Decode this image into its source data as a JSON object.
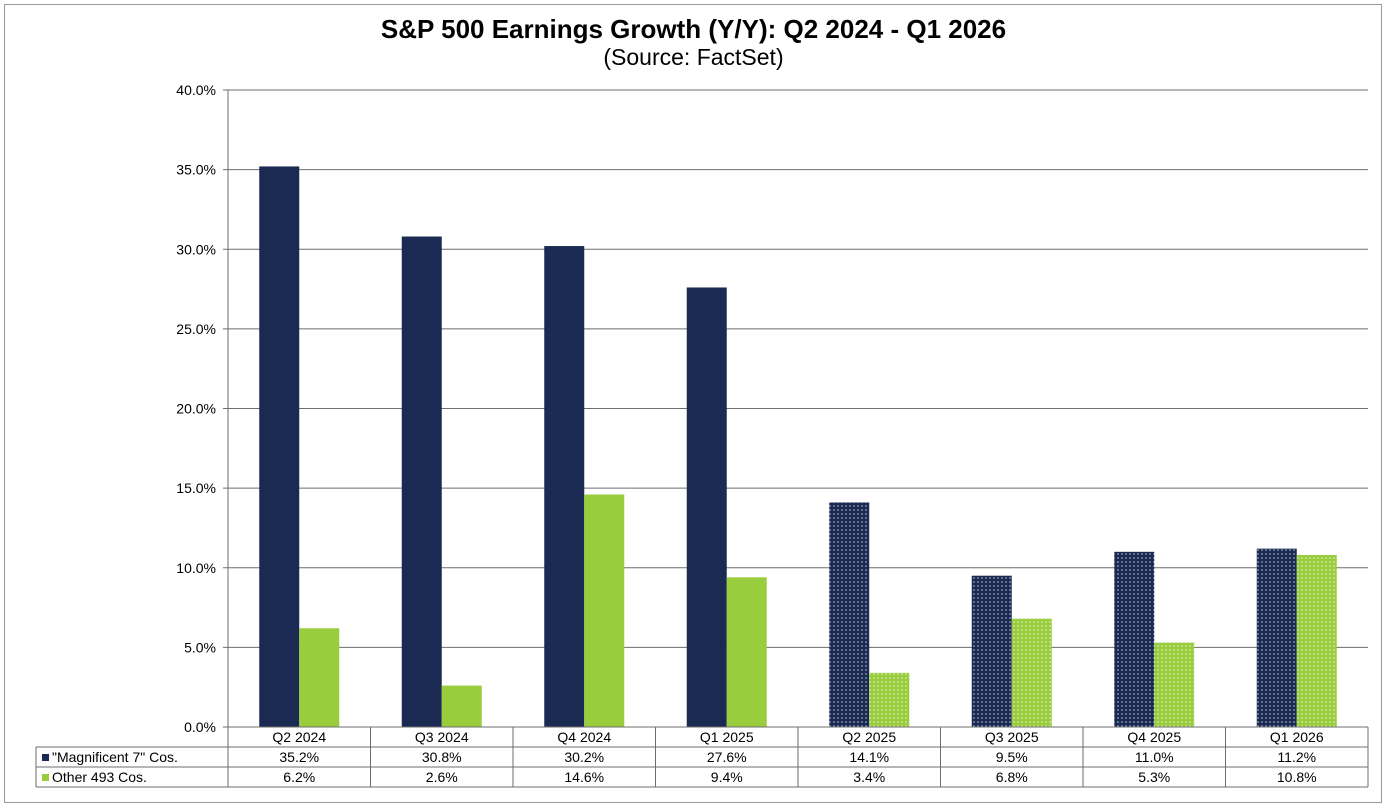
{
  "chart_data": {
    "type": "bar",
    "title": "S&P 500 Earnings Growth (Y/Y): Q2 2024 - Q1 2026",
    "subtitle": "(Source: FactSet)",
    "categories": [
      "Q2 2024",
      "Q3 2024",
      "Q4 2024",
      "Q1 2025",
      "Q2 2025",
      "Q3 2025",
      "Q4 2025",
      "Q1 2026"
    ],
    "series": [
      {
        "name": "\"Magnificent 7\" Cos.",
        "color": "#1b2a52",
        "values": [
          35.2,
          30.8,
          30.2,
          27.6,
          14.1,
          9.5,
          11.0,
          11.2
        ],
        "labels": [
          "35.2%",
          "30.8%",
          "30.2%",
          "27.6%",
          "14.1%",
          "9.5%",
          "11.0%",
          "11.2%"
        ]
      },
      {
        "name": "Other 493 Cos.",
        "color": "#9acd3e",
        "values": [
          6.2,
          2.6,
          14.6,
          9.4,
          3.4,
          6.8,
          5.3,
          10.8
        ],
        "labels": [
          "6.2%",
          "2.6%",
          "14.6%",
          "9.4%",
          "3.4%",
          "6.8%",
          "5.3%",
          "10.8%"
        ]
      }
    ],
    "estimate_from_index": 4,
    "ylim": [
      0,
      40
    ],
    "yticks": [
      "0.0%",
      "5.0%",
      "10.0%",
      "15.0%",
      "20.0%",
      "25.0%",
      "30.0%",
      "35.0%",
      "40.0%"
    ],
    "xlabel": "",
    "ylabel": "",
    "grid": true,
    "legend": "data-table"
  }
}
